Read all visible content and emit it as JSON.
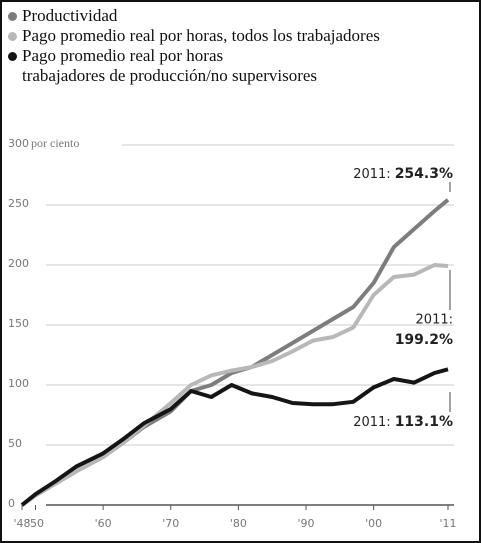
{
  "chart_data": {
    "type": "line",
    "y_axis_label": "por ciento",
    "x": [
      1948,
      1950,
      1953,
      1956,
      1960,
      1963,
      1966,
      1970,
      1973,
      1976,
      1979,
      1982,
      1985,
      1988,
      1991,
      1994,
      1997,
      2000,
      2003,
      2006,
      2009,
      2011
    ],
    "series": [
      {
        "name": "Productividad",
        "color": "#7d7d7d",
        "values": [
          0,
          8,
          18,
          28,
          40,
          52,
          65,
          78,
          95,
          100,
          110,
          115,
          125,
          135,
          145,
          155,
          165,
          185,
          215,
          230,
          245,
          254.3
        ]
      },
      {
        "name": "Pago promedio real por horas, todos los trabajadores",
        "color": "#b8b8b8",
        "values": [
          0,
          8,
          18,
          28,
          40,
          52,
          66,
          85,
          100,
          108,
          112,
          115,
          120,
          128,
          137,
          140,
          148,
          175,
          190,
          192,
          200,
          199.2
        ]
      },
      {
        "name": "Pago promedio real por horas\ntrabajadores de producción/no supervisores",
        "color": "#151515",
        "values": [
          0,
          9,
          20,
          32,
          43,
          55,
          68,
          80,
          95,
          90,
          100,
          93,
          90,
          85,
          84,
          84,
          86,
          98,
          105,
          102,
          110,
          113.1
        ]
      }
    ],
    "annotations": [
      {
        "label": "2011:",
        "value": "254.3%"
      },
      {
        "label": "2011:",
        "value": "199.2%"
      },
      {
        "label": "2011:",
        "value": "113.1%"
      }
    ],
    "xlim": [
      1948,
      2011
    ],
    "xticks": [
      {
        "value": 1948,
        "label": "'48"
      },
      {
        "value": 1950,
        "label": "'50"
      },
      {
        "value": 1960,
        "label": "'60"
      },
      {
        "value": 1970,
        "label": "'70"
      },
      {
        "value": 1980,
        "label": "'80"
      },
      {
        "value": 1990,
        "label": "'90"
      },
      {
        "value": 2000,
        "label": "'00"
      },
      {
        "value": 2011,
        "label": "'11"
      }
    ],
    "ylim": [
      0,
      300
    ],
    "yticks": [
      0,
      50,
      100,
      150,
      200,
      250,
      300
    ],
    "grid": true
  }
}
